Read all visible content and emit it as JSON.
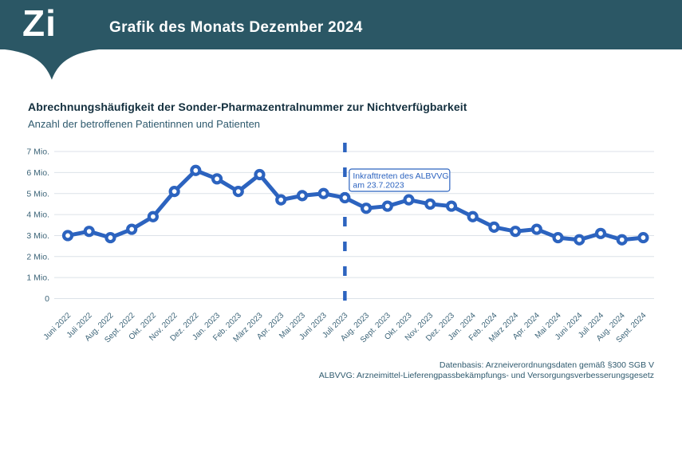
{
  "header": {
    "logo": "Zi",
    "title": "Grafik des Monats Dezember 2024",
    "bg_color": "#2B5765"
  },
  "chart_data": {
    "type": "line",
    "title": "Abrechnungshäufigkeit der Sonder-Pharmazentralnummer zur Nichtverfügbarkeit",
    "subtitle": "Anzahl der betroffenen Patientinnen und Patienten",
    "unit": "Mio. Patientinnen und Patienten",
    "categories": [
      "Juni 2022",
      "Juli 2022",
      "Aug. 2022",
      "Sept. 2022",
      "Okt. 2022",
      "Nov. 2022",
      "Dez. 2022",
      "Jan. 2023",
      "Feb. 2023",
      "März 2023",
      "Apr. 2023",
      "Mai 2023",
      "Juni 2023",
      "Juli 2023",
      "Aug. 2023",
      "Sept. 2023",
      "Okt. 2023",
      "Nov. 2023",
      "Dez. 2023",
      "Jan. 2024",
      "Feb. 2024",
      "März 2024",
      "Apr. 2024",
      "Mai 2024",
      "Juni 2024",
      "Juli 2024",
      "Aug. 2024",
      "Sept. 2024"
    ],
    "values": [
      3.0,
      3.2,
      2.9,
      3.3,
      3.9,
      5.1,
      6.1,
      5.7,
      5.1,
      5.9,
      4.7,
      4.9,
      5.0,
      4.8,
      4.3,
      4.4,
      4.7,
      4.5,
      4.4,
      3.9,
      3.4,
      3.2,
      3.3,
      2.9,
      2.8,
      3.1,
      2.8,
      2.9
    ],
    "y_ticks": [
      "7 Mio.",
      "6 Mio.",
      "5 Mio.",
      "4 Mio.",
      "3 Mio.",
      "2 Mio.",
      "1 Mio.",
      "0"
    ],
    "ylim": [
      0,
      7
    ],
    "grid": true,
    "legend": "none",
    "line_color": "#2C63BF",
    "grid_color": "#DCE2E8",
    "axis_text_color": "#3C6478",
    "annotation": {
      "line1": "Inkrafttreten des ALBVVG",
      "line2": "am 23.7.2023",
      "at_category": "Juli 2023"
    }
  },
  "footer": {
    "line1": "Datenbasis: Arzneiverordnungsdaten gemäß §300 SGB V",
    "line2": "ALBVVG: Arzneimittel-Lieferengpassbekämpfungs- und Versorgungsverbesserungsgesetz"
  }
}
